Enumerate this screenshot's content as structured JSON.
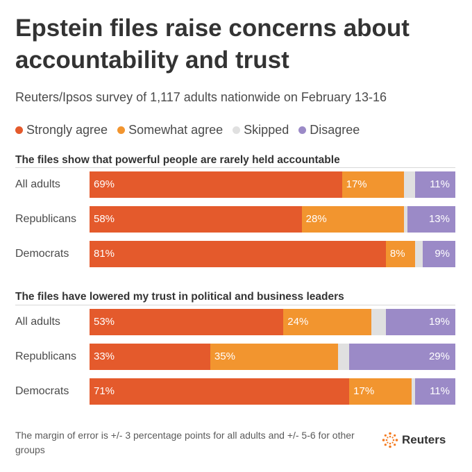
{
  "title": "Epstein files raise concerns about accountability and trust",
  "subtitle": "Reuters/Ipsos survey of 1,117 adults nationwide on February 13-16",
  "legend": [
    {
      "label": "Strongly agree",
      "color": "#e45a2c"
    },
    {
      "label": "Somewhat agree",
      "color": "#f2952f"
    },
    {
      "label": "Skipped",
      "color": "#e0e0e0"
    },
    {
      "label": "Disagree",
      "color": "#9b8ac7"
    }
  ],
  "chart_data": [
    {
      "type": "bar",
      "stacked": true,
      "orientation": "horizontal",
      "title": "The files show that powerful people are rarely held accountable",
      "categories": [
        "All adults",
        "Republicans",
        "Democrats"
      ],
      "series": [
        {
          "name": "Strongly agree",
          "values": [
            69,
            58,
            81
          ]
        },
        {
          "name": "Somewhat agree",
          "values": [
            17,
            28,
            8
          ]
        },
        {
          "name": "Skipped",
          "values": [
            3,
            1,
            2
          ]
        },
        {
          "name": "Disagree",
          "values": [
            11,
            13,
            9
          ]
        }
      ],
      "labels": [
        [
          "69%",
          "17%",
          "",
          "11%"
        ],
        [
          "58%",
          "28%",
          "",
          "13%"
        ],
        [
          "81%",
          "8%",
          "",
          "9%"
        ]
      ]
    },
    {
      "type": "bar",
      "stacked": true,
      "orientation": "horizontal",
      "title": "The files have lowered my trust in political and business leaders",
      "categories": [
        "All adults",
        "Republicans",
        "Democrats"
      ],
      "series": [
        {
          "name": "Strongly agree",
          "values": [
            53,
            33,
            71
          ]
        },
        {
          "name": "Somewhat agree",
          "values": [
            24,
            35,
            17
          ]
        },
        {
          "name": "Skipped",
          "values": [
            4,
            3,
            1
          ]
        },
        {
          "name": "Disagree",
          "values": [
            19,
            29,
            11
          ]
        }
      ],
      "labels": [
        [
          "53%",
          "24%",
          "",
          "19%"
        ],
        [
          "33%",
          "35%",
          "",
          "29%"
        ],
        [
          "71%",
          "17%",
          "",
          "11%"
        ]
      ]
    }
  ],
  "footnote": "The margin of error is +/- 3 percentage points for all adults and +/- 5-6 for other groups",
  "logo_text": "Reuters"
}
